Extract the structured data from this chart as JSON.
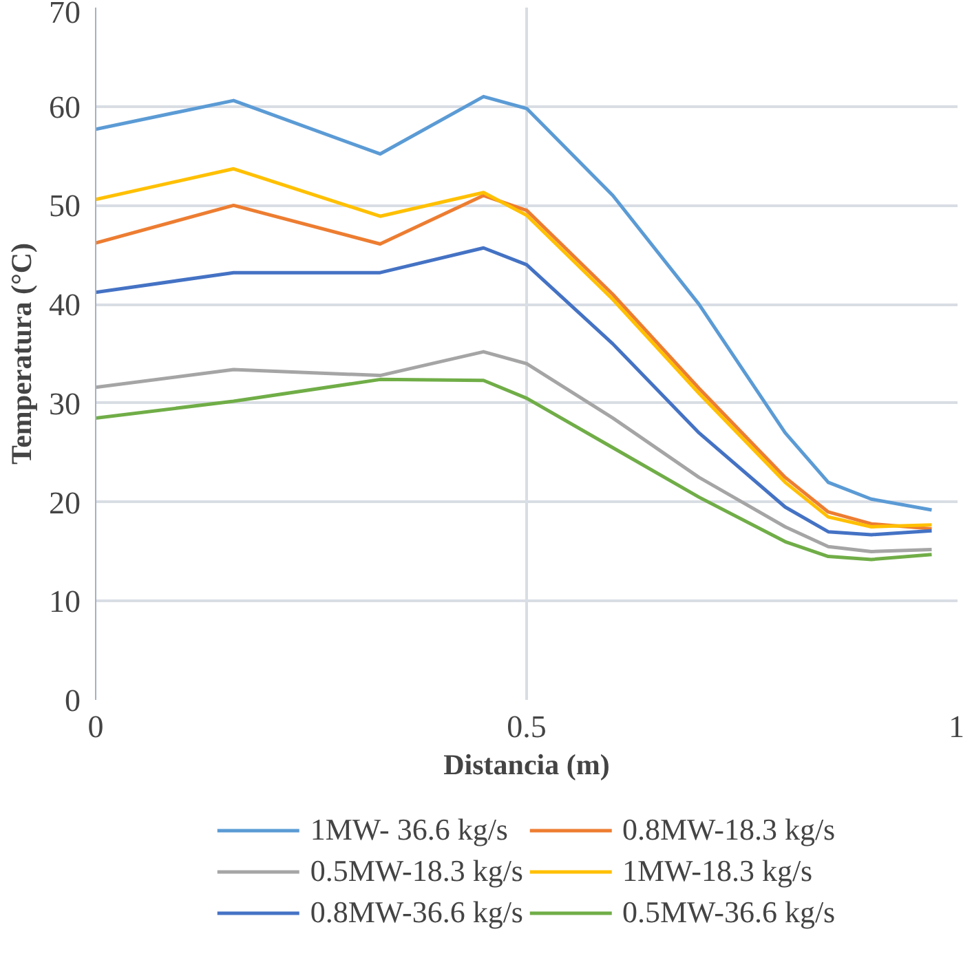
{
  "chart_data": {
    "type": "line",
    "xlabel": "Distancia (m)",
    "ylabel": "Temperatura (°C)",
    "xlim": [
      0,
      1
    ],
    "xticks": [
      0,
      0.5,
      1
    ],
    "ylim": [
      0,
      70
    ],
    "yticks": [
      0,
      10,
      20,
      30,
      40,
      50,
      60,
      70
    ],
    "grid": true,
    "legend": "bottom",
    "marker": "none",
    "line_style": "solid",
    "x": [
      0,
      0.16,
      0.33,
      0.45,
      0.5,
      0.6,
      0.7,
      0.8,
      0.85,
      0.9,
      0.97
    ],
    "series": [
      {
        "name": "1MW- 36.6 kg/s",
        "color": "#5b9bd5",
        "values": [
          57.7,
          60.6,
          55.2,
          61.0,
          59.8,
          51,
          40,
          27,
          22,
          20.3,
          19.2
        ]
      },
      {
        "name": "0.8MW-18.3 kg/s",
        "color": "#ed7d31",
        "values": [
          46.2,
          50,
          46.1,
          51,
          49.5,
          41,
          31.5,
          22.5,
          19,
          17.8,
          17.3
        ]
      },
      {
        "name": "0.5MW-18.3 kg/s",
        "color": "#a5a5a5",
        "values": [
          31.6,
          33.4,
          32.8,
          35.2,
          34,
          28.5,
          22.5,
          17.5,
          15.5,
          15,
          15.2
        ]
      },
      {
        "name": "1MW-18.3 kg/s",
        "color": "#ffc000",
        "values": [
          50.6,
          53.7,
          48.9,
          51.3,
          49,
          40.5,
          31,
          22,
          18.5,
          17.5,
          17.7
        ]
      },
      {
        "name": "0.8MW-36.6 kg/s",
        "color": "#4472c4",
        "values": [
          41.2,
          43.2,
          43.2,
          45.7,
          44,
          36,
          27,
          19.5,
          17,
          16.7,
          17.1
        ]
      },
      {
        "name": "0.5MW-36.6 kg/s",
        "color": "#70ad47",
        "values": [
          28.5,
          30.2,
          32.4,
          32.3,
          30.5,
          25.5,
          20.5,
          16,
          14.5,
          14.2,
          14.7
        ]
      }
    ]
  }
}
